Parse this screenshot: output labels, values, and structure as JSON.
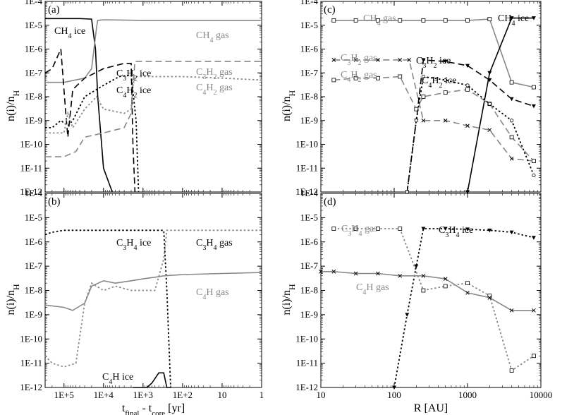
{
  "chart_data": [
    {
      "id": "a",
      "type": "line",
      "panel_label": "(a)",
      "xlabel": "",
      "ylabel": "n(i)/nH",
      "x_scale": "log-reversed",
      "y_scale": "log",
      "ylim": [
        1e-12,
        0.0001
      ],
      "y_ticks": [
        "1E-12",
        "1E-11",
        "1E-10",
        "1E-9",
        "1E-8",
        "1E-7",
        "1E-6",
        "1E-5",
        "1E-4"
      ],
      "x_ticks": [],
      "series": [
        {
          "name": "CH4 ice",
          "color": "#000000",
          "dash": "solid",
          "x": [
            300000,
            100000,
            40000,
            20000,
            16000,
            14000,
            10000,
            6000
          ],
          "y": [
            1.9e-05,
            1.9e-05,
            1.9e-05,
            1.8e-05,
            1e-06,
            1e-08,
            1e-11,
            1e-12
          ]
        },
        {
          "name": "CH4 gas",
          "color": "#888888",
          "dash": "solid",
          "x": [
            300000,
            100000,
            30000,
            20000,
            15000,
            14000,
            10000,
            1000,
            100,
            10,
            1
          ],
          "y": [
            4e-08,
            4e-08,
            6e-08,
            1.5e-07,
            8e-06,
            1.6e-05,
            1.7e-05,
            1.6e-05,
            1.6e-05,
            1.6e-05,
            1.6e-05
          ]
        },
        {
          "name": "C3H2 ice",
          "color": "#000000",
          "dash": "long",
          "x": [
            300000,
            200000,
            120000,
            90000,
            80000,
            60000,
            30000,
            10000,
            3000,
            2000,
            1800,
            1600
          ],
          "y": [
            1e-07,
            1.5e-07,
            1e-06,
            2e-09,
            2e-10,
            2e-08,
            6e-08,
            1.5e-07,
            2.5e-07,
            2.5e-07,
            1e-10,
            1e-12
          ]
        },
        {
          "name": "C3H2 gas",
          "color": "#888888",
          "dash": "long",
          "x": [
            300000,
            100000,
            50000,
            30000,
            10000,
            3000,
            2000,
            1800,
            1600,
            1000,
            100,
            10,
            1
          ],
          "y": [
            3e-11,
            3e-11,
            5e-11,
            2e-10,
            3e-10,
            5e-10,
            2e-09,
            3e-08,
            3e-07,
            3e-07,
            3e-07,
            3e-07,
            3e-07
          ]
        },
        {
          "name": "C4H2 ice",
          "color": "#000000",
          "dash": "dot",
          "x": [
            300000,
            200000,
            120000,
            80000,
            60000,
            30000,
            10000,
            4000,
            2000,
            1500,
            1300
          ],
          "y": [
            5e-10,
            5e-10,
            1e-09,
            6e-10,
            1e-09,
            1e-08,
            3e-08,
            7e-08,
            8e-08,
            1e-09,
            1e-12
          ]
        },
        {
          "name": "C4H2 gas",
          "color": "#888888",
          "dash": "dot",
          "x": [
            300000,
            100000,
            80000,
            60000,
            30000,
            15000,
            10000,
            3000,
            2000,
            1800,
            1600,
            1000,
            100,
            10,
            1
          ],
          "y": [
            3e-10,
            3e-10,
            2e-09,
            5e-10,
            3e-09,
            1e-08,
            3e-09,
            2e-09,
            3e-09,
            3e-08,
            7e-08,
            7e-08,
            7e-08,
            6e-08,
            5e-08
          ]
        }
      ],
      "annotations": [
        {
          "text": "CH4 ice",
          "color": "#000000"
        },
        {
          "text": "CH4 gas",
          "color": "#888888"
        },
        {
          "text": "C3H2 ice",
          "color": "#000000"
        },
        {
          "text": "C3H2 gas",
          "color": "#888888"
        },
        {
          "text": "C4H2 ice",
          "color": "#000000"
        },
        {
          "text": "C4H2 gas",
          "color": "#888888"
        }
      ]
    },
    {
      "id": "b",
      "type": "line",
      "panel_label": "(b)",
      "xlabel": "tfinal - tcore [yr]",
      "ylabel": "n(i)/nH",
      "x_scale": "log-reversed",
      "y_scale": "log",
      "ylim": [
        1e-12,
        0.0001
      ],
      "y_ticks": [
        "1E-12",
        "1E-11",
        "1E-10",
        "1E-9",
        "1E-8",
        "1E-7",
        "1E-6",
        "1E-5",
        "1E-4"
      ],
      "x_ticks": [
        "1E+5",
        "1E+4",
        "1E+3",
        "1E+2",
        "10",
        "1"
      ],
      "series": [
        {
          "name": "C3H4 ice",
          "color": "#000000",
          "dash": "dot",
          "x": [
            300000,
            200000,
            100000,
            30000,
            10000,
            3000,
            1000,
            500,
            300,
            250,
            200
          ],
          "y": [
            2e-06,
            2.5e-06,
            3e-06,
            3e-06,
            3e-06,
            3e-06,
            3e-06,
            3e-06,
            3e-06,
            1e-08,
            1e-12
          ]
        },
        {
          "name": "C3H4 gas",
          "color": "#888888",
          "dash": "dot",
          "x": [
            300000,
            200000,
            100000,
            50000,
            30000,
            20000,
            10000,
            5000,
            2000,
            1000,
            500,
            300,
            250,
            200,
            100,
            10,
            1
          ],
          "y": [
            2e-11,
            1e-11,
            7e-12,
            1e-11,
            3e-09,
            2e-08,
            1e-08,
            1.5e-08,
            1e-08,
            1e-08,
            1e-08,
            2e-07,
            3e-06,
            3e-06,
            3e-06,
            3e-06,
            3e-06
          ]
        },
        {
          "name": "C4H gas",
          "color": "#888888",
          "dash": "solid",
          "x": [
            300000,
            100000,
            60000,
            30000,
            20000,
            10000,
            5000,
            2000,
            1000,
            500,
            300,
            100,
            10,
            1
          ],
          "y": [
            2.5e-09,
            2e-09,
            1.5e-09,
            3e-09,
            1.5e-08,
            2.5e-08,
            2e-08,
            2.5e-08,
            3e-08,
            3.5e-08,
            4e-08,
            4.5e-08,
            5e-08,
            5.5e-08
          ]
        },
        {
          "name": "C4H ice",
          "color": "#000000",
          "dash": "solid",
          "x": [
            1800,
            800,
            600,
            400,
            300,
            250,
            200
          ],
          "y": [
            1e-12,
            1e-12,
            1.5e-12,
            4e-12,
            4e-12,
            1e-12,
            1e-12
          ]
        }
      ],
      "annotations": [
        {
          "text": "C3H4 ice",
          "color": "#000000"
        },
        {
          "text": "C3H4 gas",
          "color": "#000000"
        },
        {
          "text": "C4H gas",
          "color": "#888888"
        },
        {
          "text": "C4H ice",
          "color": "#000000"
        }
      ]
    },
    {
      "id": "c",
      "type": "line",
      "panel_label": "(c)",
      "xlabel": "",
      "ylabel": "n(i)/nH",
      "x_scale": "log",
      "y_scale": "log",
      "ylim": [
        1e-12,
        0.0001
      ],
      "y_ticks": [
        "1E-12",
        "1E-11",
        "1E-10",
        "1E-9",
        "1E-8",
        "1E-7",
        "1E-6",
        "1E-5",
        "1E-4"
      ],
      "x_ticks": [],
      "series": [
        {
          "name": "CH4 gas",
          "color": "#888888",
          "dash": "solid",
          "marker": "square",
          "x": [
            15,
            30,
            60,
            120,
            250,
            500,
            1000,
            2000,
            4000,
            8000
          ],
          "y": [
            1.6e-05,
            1.6e-05,
            1.6e-05,
            1.6e-05,
            1.6e-05,
            1.6e-05,
            1.6e-05,
            1.8e-05,
            4e-08,
            2.5e-08
          ]
        },
        {
          "name": "CH4 ice",
          "color": "#000000",
          "dash": "solid",
          "marker": "triangle",
          "x": [
            1000,
            2000,
            4000,
            8000
          ],
          "y": [
            1e-12,
            1e-07,
            2e-05,
            2e-05
          ]
        },
        {
          "name": "C3H2 gas",
          "color": "#888888",
          "dash": "long",
          "marker": "cross",
          "x": [
            15,
            30,
            60,
            120,
            160,
            250,
            500,
            1000,
            2000,
            4000,
            8000
          ],
          "y": [
            3.5e-07,
            3.5e-07,
            3.5e-07,
            3.5e-07,
            3.5e-07,
            1e-09,
            1e-09,
            6e-10,
            4e-10,
            2.5e-11,
            2e-11
          ]
        },
        {
          "name": "C3H2 ice",
          "color": "#000000",
          "dash": "long",
          "marker": "triangle",
          "x": [
            150,
            200,
            250,
            500,
            1000,
            2000,
            4000,
            8000
          ],
          "y": [
            1e-12,
            1e-09,
            3.5e-07,
            3e-07,
            2e-07,
            5e-08,
            8e-09,
            4e-09
          ]
        },
        {
          "name": "C4H2 gas",
          "color": "#888888",
          "dash": "long",
          "marker": "square",
          "x": [
            15,
            30,
            60,
            120,
            200,
            250,
            500,
            1000,
            2000,
            4000,
            8000
          ],
          "y": [
            5e-08,
            6e-08,
            6e-08,
            7e-08,
            3e-09,
            1e-08,
            1.5e-08,
            2e-08,
            5e-09,
            2e-10,
            2e-11
          ]
        },
        {
          "name": "C4H2 ice",
          "color": "#000000",
          "dash": "dot",
          "marker": "circle",
          "x": [
            150,
            200,
            250,
            500,
            1000,
            2000,
            4000,
            8000
          ],
          "y": [
            1e-12,
            1e-09,
            7e-08,
            5e-08,
            3e-08,
            5e-09,
            1e-09,
            5e-12
          ]
        }
      ],
      "annotations": [
        {
          "text": "CH4 gas",
          "color": "#888888"
        },
        {
          "text": "CH4 ice",
          "color": "#000000"
        },
        {
          "text": "C3H2 gas",
          "color": "#888888"
        },
        {
          "text": "C3H2 ice",
          "color": "#000000"
        },
        {
          "text": "C4H2 gas",
          "color": "#888888"
        },
        {
          "text": "C4H2 ice",
          "color": "#000000"
        }
      ]
    },
    {
      "id": "d",
      "type": "line",
      "panel_label": "(d)",
      "xlabel": "R [AU]",
      "ylabel": "n(i)/nH",
      "x_scale": "log",
      "y_scale": "log",
      "xlim": [
        10,
        10000
      ],
      "ylim": [
        1e-12,
        0.0001
      ],
      "y_ticks": [
        "1E-12",
        "1E-11",
        "1E-10",
        "1E-9",
        "1E-8",
        "1E-7",
        "1E-6",
        "1E-5",
        "1E-4"
      ],
      "x_ticks": [
        "10",
        "100",
        "1000",
        "10000"
      ],
      "series": [
        {
          "name": "C3H4 gas",
          "color": "#888888",
          "dash": "dot",
          "marker": "square",
          "x": [
            15,
            30,
            60,
            120,
            250,
            500,
            1000,
            2000,
            4000,
            8000
          ],
          "y": [
            3.5e-06,
            3.5e-06,
            3.5e-06,
            3.5e-06,
            1e-08,
            1.5e-08,
            2e-08,
            6e-09,
            5e-12,
            2e-11
          ]
        },
        {
          "name": "C3H4 ice",
          "color": "#000000",
          "dash": "dot",
          "marker": "triangle",
          "x": [
            100,
            150,
            200,
            250,
            500,
            1000,
            2000,
            4000,
            8000
          ],
          "y": [
            1e-12,
            1e-09,
            1e-07,
            3.5e-06,
            3.5e-06,
            3.3e-06,
            3e-06,
            2.5e-06,
            1.5e-06
          ]
        },
        {
          "name": "C4H gas",
          "color": "#888888",
          "dash": "solid",
          "marker": "cross",
          "x": [
            10,
            15,
            30,
            60,
            120,
            250,
            500,
            1000,
            2000,
            4000,
            8000
          ],
          "y": [
            6e-08,
            6e-08,
            5e-08,
            5e-08,
            4e-08,
            4e-08,
            3e-08,
            8e-09,
            5e-09,
            1.5e-09,
            1.5e-09
          ]
        }
      ],
      "annotations": [
        {
          "text": "C3H4 gas",
          "color": "#888888"
        },
        {
          "text": "C3H4 ice",
          "color": "#000000"
        },
        {
          "text": "C4H gas",
          "color": "#888888"
        }
      ]
    }
  ]
}
